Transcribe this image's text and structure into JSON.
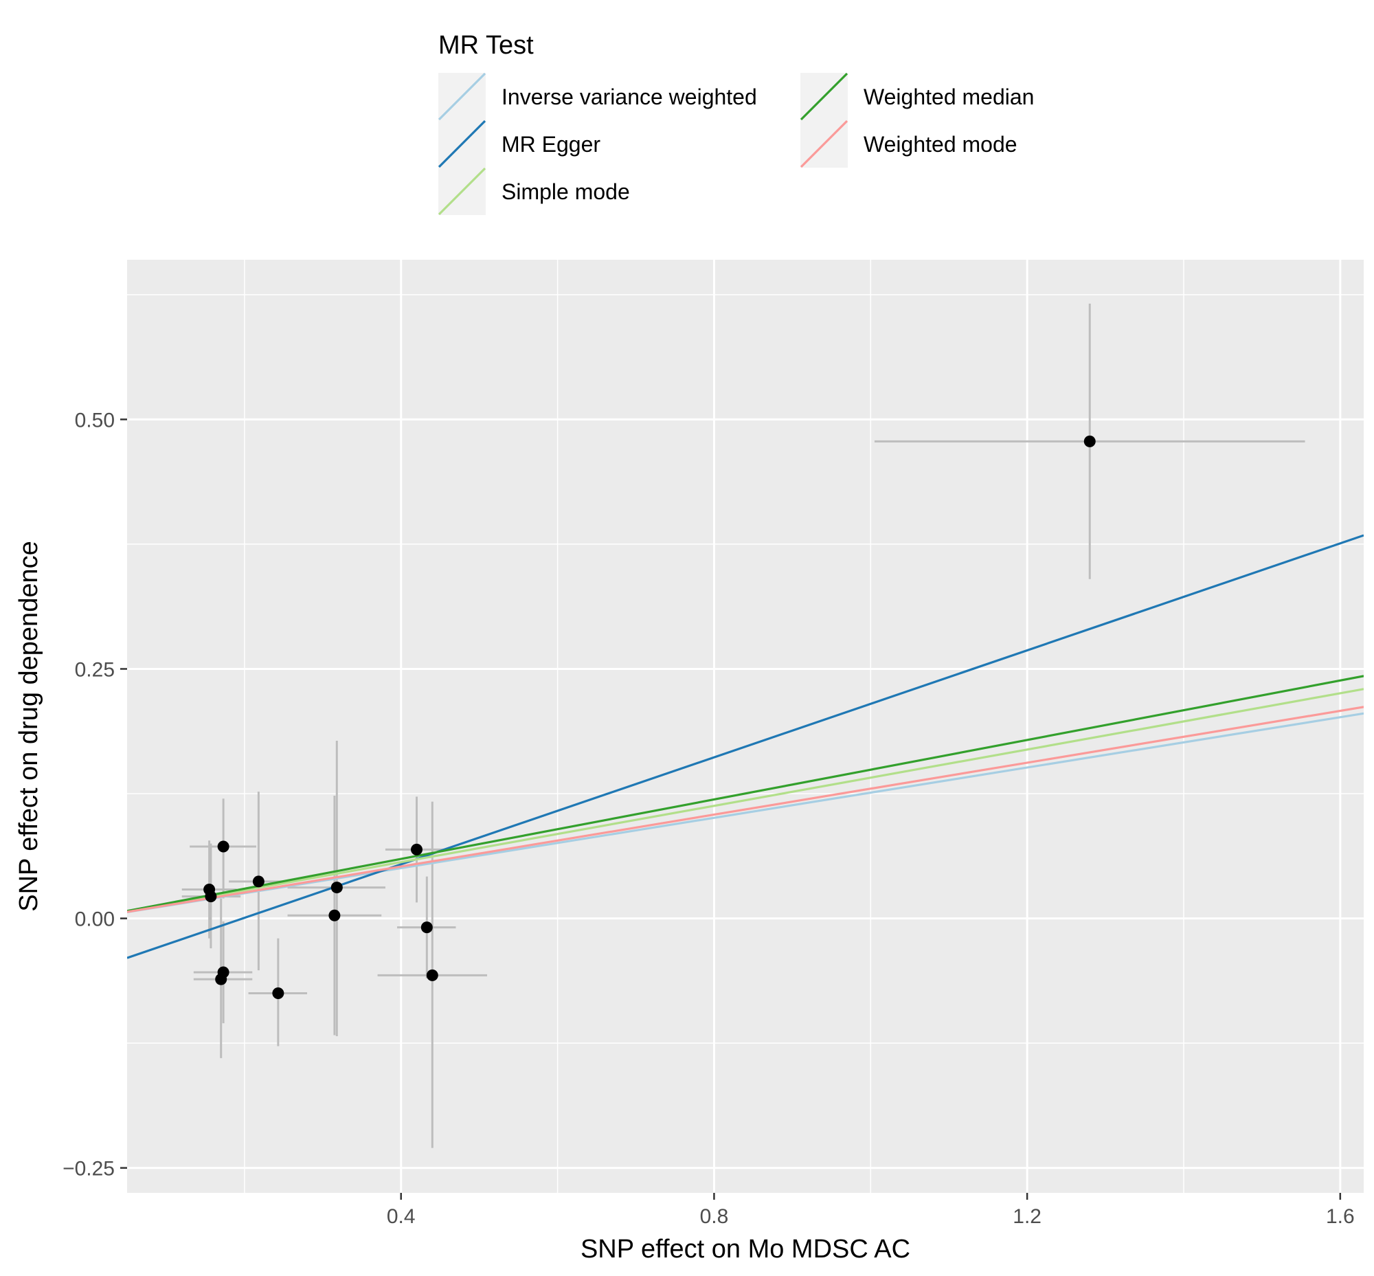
{
  "chart_data": {
    "type": "scatter",
    "xlabel": "SNP effect on Mo MDSC AC",
    "ylabel": "SNP effect on drug dependence",
    "xlim": [
      0.05,
      1.63
    ],
    "ylim": [
      -0.275,
      0.66
    ],
    "x_ticks": [
      0.4,
      0.8,
      1.2,
      1.6
    ],
    "x_tick_labels": [
      "0.4",
      "0.8",
      "1.2",
      "1.6"
    ],
    "x_minor_ticks": [
      0.2,
      0.6,
      1.0,
      1.4
    ],
    "y_ticks": [
      -0.25,
      0.0,
      0.25,
      0.5
    ],
    "y_tick_labels": [
      "−0.25",
      "0.00",
      "0.25",
      "0.50"
    ],
    "y_minor_ticks": [
      -0.125,
      0.125,
      0.375,
      0.625
    ],
    "grid": true,
    "legend": {
      "title": "MR Test",
      "position": "top",
      "entries": [
        {
          "name": "Inverse variance weighted",
          "color": "#a6cee3"
        },
        {
          "name": "MR Egger",
          "color": "#1f78b4"
        },
        {
          "name": "Simple mode",
          "color": "#b2df8a"
        },
        {
          "name": "Weighted median",
          "color": "#33a02c"
        },
        {
          "name": "Weighted mode",
          "color": "#fb9a99"
        }
      ]
    },
    "lines": [
      {
        "name": "Inverse variance weighted",
        "color": "#a6cee3",
        "intercept": 0.0,
        "slope": 0.126
      },
      {
        "name": "MR Egger",
        "color": "#1f78b4",
        "intercept": -0.053,
        "slope": 0.268
      },
      {
        "name": "Simple mode",
        "color": "#b2df8a",
        "intercept": 0.0,
        "slope": 0.141
      },
      {
        "name": "Weighted median",
        "color": "#33a02c",
        "intercept": 0.0,
        "slope": 0.149
      },
      {
        "name": "Weighted mode",
        "color": "#fb9a99",
        "intercept": 0.0,
        "slope": 0.13
      }
    ],
    "points": [
      {
        "x": 0.155,
        "y": 0.029,
        "x_lo": 0.12,
        "x_hi": 0.19,
        "y_lo": -0.02,
        "y_hi": 0.078
      },
      {
        "x": 0.157,
        "y": 0.022,
        "x_lo": 0.12,
        "x_hi": 0.195,
        "y_lo": -0.03,
        "y_hi": 0.075
      },
      {
        "x": 0.173,
        "y": 0.072,
        "x_lo": 0.13,
        "x_hi": 0.215,
        "y_lo": 0.02,
        "y_hi": 0.12
      },
      {
        "x": 0.218,
        "y": 0.037,
        "x_lo": 0.18,
        "x_hi": 0.26,
        "y_lo": -0.052,
        "y_hi": 0.127
      },
      {
        "x": 0.17,
        "y": -0.061,
        "x_lo": 0.135,
        "x_hi": 0.21,
        "y_lo": -0.14,
        "y_hi": 0.02
      },
      {
        "x": 0.173,
        "y": -0.054,
        "x_lo": 0.135,
        "x_hi": 0.21,
        "y_lo": -0.105,
        "y_hi": -0.003
      },
      {
        "x": 0.243,
        "y": -0.075,
        "x_lo": 0.205,
        "x_hi": 0.28,
        "y_lo": -0.128,
        "y_hi": -0.02
      },
      {
        "x": 0.315,
        "y": 0.003,
        "x_lo": 0.255,
        "x_hi": 0.375,
        "y_lo": -0.117,
        "y_hi": 0.123
      },
      {
        "x": 0.318,
        "y": 0.031,
        "x_lo": 0.255,
        "x_hi": 0.38,
        "y_lo": -0.118,
        "y_hi": 0.178
      },
      {
        "x": 0.42,
        "y": 0.069,
        "x_lo": 0.38,
        "x_hi": 0.46,
        "y_lo": 0.016,
        "y_hi": 0.122
      },
      {
        "x": 0.433,
        "y": -0.009,
        "x_lo": 0.395,
        "x_hi": 0.47,
        "y_lo": -0.06,
        "y_hi": 0.042
      },
      {
        "x": 0.44,
        "y": -0.057,
        "x_lo": 0.37,
        "x_hi": 0.51,
        "y_lo": -0.23,
        "y_hi": 0.117
      },
      {
        "x": 1.28,
        "y": 0.478,
        "x_lo": 1.005,
        "x_hi": 1.555,
        "y_lo": 0.34,
        "y_hi": 0.616
      }
    ]
  }
}
